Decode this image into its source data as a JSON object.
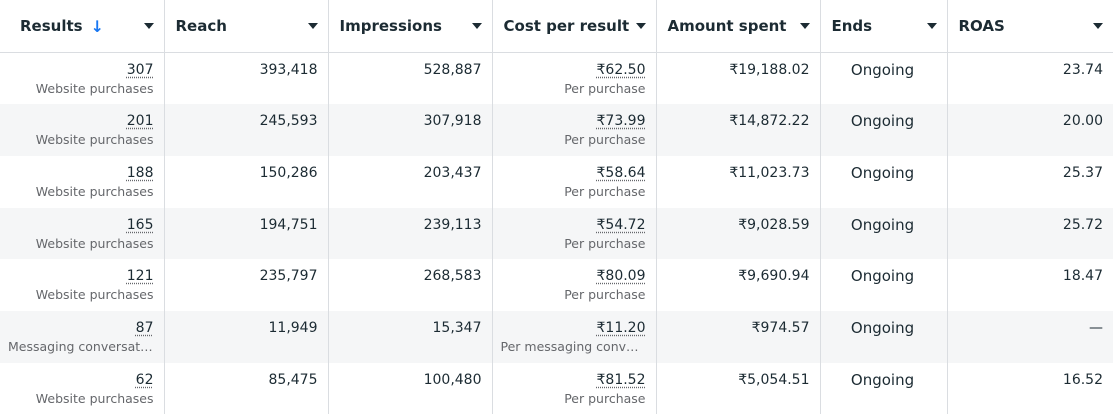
{
  "columns": [
    {
      "label": "Results",
      "sorted": true
    },
    {
      "label": "Reach"
    },
    {
      "label": "Impressions"
    },
    {
      "label": "Cost per result"
    },
    {
      "label": "Amount spent"
    },
    {
      "label": "Ends"
    },
    {
      "label": "ROAS"
    }
  ],
  "rows": [
    {
      "results": "307",
      "results_type": "Website purchases",
      "reach": "393,418",
      "impressions": "528,887",
      "cost": "₹62.50",
      "cost_type": "Per purchase",
      "spent": "₹19,188.02",
      "ends": "Ongoing",
      "roas": "23.74"
    },
    {
      "results": "201",
      "results_type": "Website purchases",
      "reach": "245,593",
      "impressions": "307,918",
      "cost": "₹73.99",
      "cost_type": "Per purchase",
      "spent": "₹14,872.22",
      "ends": "Ongoing",
      "roas": "20.00"
    },
    {
      "results": "188",
      "results_type": "Website purchases",
      "reach": "150,286",
      "impressions": "203,437",
      "cost": "₹58.64",
      "cost_type": "Per purchase",
      "spent": "₹11,023.73",
      "ends": "Ongoing",
      "roas": "25.37"
    },
    {
      "results": "165",
      "results_type": "Website purchases",
      "reach": "194,751",
      "impressions": "239,113",
      "cost": "₹54.72",
      "cost_type": "Per purchase",
      "spent": "₹9,028.59",
      "ends": "Ongoing",
      "roas": "25.72"
    },
    {
      "results": "121",
      "results_type": "Website purchases",
      "reach": "235,797",
      "impressions": "268,583",
      "cost": "₹80.09",
      "cost_type": "Per purchase",
      "spent": "₹9,690.94",
      "ends": "Ongoing",
      "roas": "18.47"
    },
    {
      "results": "87",
      "results_type": "Messaging conversati...",
      "reach": "11,949",
      "impressions": "15,347",
      "cost": "₹11.20",
      "cost_type": "Per messaging conver...",
      "spent": "₹974.57",
      "ends": "Ongoing",
      "roas": "—"
    },
    {
      "results": "62",
      "results_type": "Website purchases",
      "reach": "85,475",
      "impressions": "100,480",
      "cost": "₹81.52",
      "cost_type": "Per purchase",
      "spent": "₹5,054.51",
      "ends": "Ongoing",
      "roas": "16.52"
    }
  ]
}
